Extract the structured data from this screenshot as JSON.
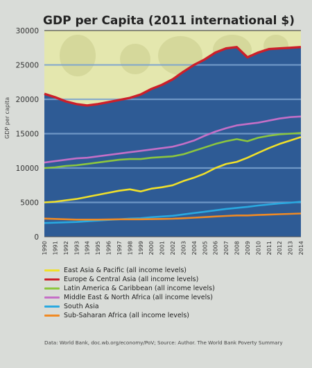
{
  "chart_data": {
    "type": "line",
    "title": "GDP per Capita (2011 international $)",
    "ylabel": "GDP per capita",
    "source": "Data: World Bank, doc.wb.org/economy/PoV; Source: Author. The World Bank Poverty Summary",
    "ylim": [
      0,
      30000
    ],
    "yticks": [
      0,
      5000,
      10000,
      15000,
      20000,
      25000,
      30000
    ],
    "x": [
      1990,
      1991,
      1992,
      1993,
      1994,
      1995,
      1996,
      1997,
      1998,
      1999,
      2000,
      2001,
      2002,
      2003,
      2004,
      2005,
      2006,
      2007,
      2008,
      2009,
      2010,
      2011,
      2012,
      2013,
      2014
    ],
    "xticklabels": [
      "1990",
      "1991",
      "1992",
      "1993",
      "1994",
      "1995",
      "1996",
      "1997",
      "1998",
      "1999",
      "2000",
      "2001",
      "2002",
      "2003",
      "2004",
      "2005",
      "2006",
      "2007",
      "2008",
      "2009",
      "2010",
      "2011",
      "2012",
      "2013",
      "2014"
    ],
    "series": [
      {
        "name": "East Asia & Pacific (all income levels)",
        "color": "#f0e02a",
        "values": [
          5000,
          5100,
          5300,
          5500,
          5800,
          6100,
          6400,
          6700,
          6900,
          6600,
          7000,
          7200,
          7500,
          8100,
          8600,
          9200,
          10000,
          10600,
          10900,
          11500,
          12200,
          12900,
          13500,
          14000,
          14500
        ]
      },
      {
        "name": "Europe & Central Asia (all income levels)",
        "color": "#cc1f2a",
        "values": [
          20800,
          20300,
          19700,
          19300,
          19100,
          19300,
          19600,
          19900,
          20200,
          20700,
          21500,
          22100,
          22900,
          24000,
          25000,
          25800,
          26800,
          27400,
          27600,
          26100,
          26800,
          27300,
          27400,
          27500,
          27600
        ]
      },
      {
        "name": "Latin America & Caribbean (all income levels)",
        "color": "#8cc63e",
        "values": [
          10000,
          10100,
          10300,
          10400,
          10600,
          10800,
          11000,
          11200,
          11300,
          11300,
          11500,
          11600,
          11700,
          12000,
          12500,
          13000,
          13500,
          13900,
          14200,
          13900,
          14400,
          14700,
          14900,
          15000,
          15100
        ]
      },
      {
        "name": "Middle East & North Africa (all income levels)",
        "color": "#c56fc7",
        "values": [
          10800,
          11000,
          11200,
          11400,
          11500,
          11700,
          11900,
          12100,
          12300,
          12500,
          12700,
          12900,
          13100,
          13500,
          14000,
          14700,
          15300,
          15800,
          16200,
          16400,
          16600,
          16900,
          17200,
          17400,
          17500
        ]
      },
      {
        "name": "South Asia",
        "color": "#2aa9e0",
        "values": [
          2000,
          2050,
          2100,
          2150,
          2250,
          2350,
          2450,
          2550,
          2650,
          2700,
          2850,
          2950,
          3050,
          3250,
          3450,
          3650,
          3850,
          4050,
          4200,
          4350,
          4550,
          4700,
          4850,
          4950,
          5100
        ]
      },
      {
        "name": "Sub-Saharan Africa (all income levels)",
        "color": "#f08a24",
        "values": [
          2650,
          2600,
          2550,
          2500,
          2500,
          2500,
          2520,
          2550,
          2550,
          2550,
          2570,
          2600,
          2630,
          2700,
          2780,
          2860,
          2950,
          3030,
          3100,
          3100,
          3170,
          3220,
          3280,
          3330,
          3380
        ]
      }
    ]
  }
}
